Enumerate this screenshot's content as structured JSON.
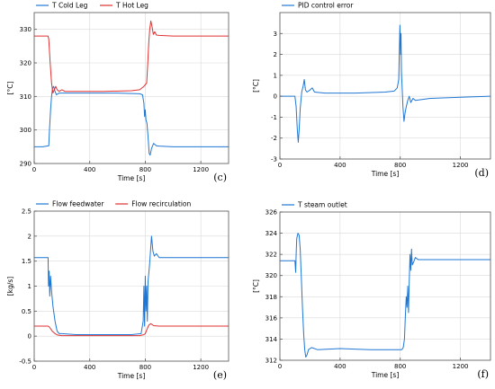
{
  "chart_data": [
    {
      "type": "line",
      "panel_label": "(c)",
      "xlabel": "Time [s]",
      "ylabel": "[°C]",
      "xlim": [
        0,
        1400
      ],
      "ylim": [
        290,
        335
      ],
      "xticks": [
        0,
        400,
        800,
        1200
      ],
      "yticks": [
        290,
        300,
        310,
        320,
        330
      ],
      "grid": true,
      "legend": "top-left",
      "series": [
        {
          "name": "T Cold Leg",
          "color": "#1f77d4",
          "points": [
            [
              0,
              295
            ],
            [
              60,
              295
            ],
            [
              105,
              295.3
            ],
            [
              110,
              300
            ],
            [
              118,
              306
            ],
            [
              125,
              310
            ],
            [
              132,
              312.5
            ],
            [
              140,
              313
            ],
            [
              150,
              311.5
            ],
            [
              160,
              310.5
            ],
            [
              180,
              311
            ],
            [
              220,
              311
            ],
            [
              400,
              311
            ],
            [
              600,
              311
            ],
            [
              760,
              310.8
            ],
            [
              780,
              310.5
            ],
            [
              790,
              308
            ],
            [
              795,
              304
            ],
            [
              800,
              306
            ],
            [
              805,
              303
            ],
            [
              812,
              302
            ],
            [
              820,
              298
            ],
            [
              828,
              293
            ],
            [
              835,
              292.5
            ],
            [
              845,
              294.5
            ],
            [
              860,
              296
            ],
            [
              880,
              295.3
            ],
            [
              900,
              295.2
            ],
            [
              1000,
              295
            ],
            [
              1200,
              295
            ],
            [
              1400,
              295
            ]
          ]
        },
        {
          "name": "T Hot Leg",
          "color": "#e03030",
          "points": [
            [
              0,
              328
            ],
            [
              100,
              328
            ],
            [
              105,
              327
            ],
            [
              115,
              320
            ],
            [
              125,
              314
            ],
            [
              135,
              311
            ],
            [
              145,
              312
            ],
            [
              155,
              313
            ],
            [
              165,
              312
            ],
            [
              180,
              311.5
            ],
            [
              200,
              312
            ],
            [
              220,
              311.5
            ],
            [
              300,
              311.5
            ],
            [
              500,
              311.5
            ],
            [
              700,
              311.7
            ],
            [
              760,
              312
            ],
            [
              790,
              313
            ],
            [
              810,
              314
            ],
            [
              818,
              320
            ],
            [
              825,
              326
            ],
            [
              832,
              330
            ],
            [
              840,
              332.5
            ],
            [
              848,
              331
            ],
            [
              858,
              328.5
            ],
            [
              868,
              329.3
            ],
            [
              880,
              328.3
            ],
            [
              900,
              328.2
            ],
            [
              1000,
              328
            ],
            [
              1200,
              328
            ],
            [
              1400,
              328
            ]
          ]
        }
      ]
    },
    {
      "type": "line",
      "panel_label": "(d)",
      "xlabel": "Time [s]",
      "ylabel": "[°C]",
      "xlim": [
        0,
        1400
      ],
      "ylim": [
        -3,
        4
      ],
      "xticks": [
        0,
        400,
        800,
        1200
      ],
      "yticks": [
        -3,
        -2,
        -1,
        0,
        1,
        2,
        3
      ],
      "grid": true,
      "legend": "top-left",
      "series": [
        {
          "name": "PID control error",
          "color": "#1f77d4",
          "points": [
            [
              0,
              0
            ],
            [
              100,
              0
            ],
            [
              108,
              -0.5
            ],
            [
              115,
              -1.5
            ],
            [
              122,
              -2.2
            ],
            [
              128,
              -1.6
            ],
            [
              135,
              -0.6
            ],
            [
              145,
              0.2
            ],
            [
              155,
              0.5
            ],
            [
              162,
              0.8
            ],
            [
              170,
              0.3
            ],
            [
              180,
              0.2
            ],
            [
              200,
              0.3
            ],
            [
              215,
              0.4
            ],
            [
              230,
              0.2
            ],
            [
              300,
              0.15
            ],
            [
              500,
              0.15
            ],
            [
              700,
              0.2
            ],
            [
              760,
              0.25
            ],
            [
              780,
              0.4
            ],
            [
              790,
              0.8
            ],
            [
              795,
              2.5
            ],
            [
              798,
              3.4
            ],
            [
              802,
              2
            ],
            [
              805,
              3
            ],
            [
              808,
              1.2
            ],
            [
              812,
              0.5
            ],
            [
              818,
              -0.5
            ],
            [
              825,
              -1.2
            ],
            [
              832,
              -0.8
            ],
            [
              840,
              -0.5
            ],
            [
              850,
              -0.2
            ],
            [
              860,
              0
            ],
            [
              870,
              -0.3
            ],
            [
              885,
              -0.1
            ],
            [
              900,
              -0.2
            ],
            [
              1000,
              -0.1
            ],
            [
              1200,
              -0.05
            ],
            [
              1400,
              0
            ]
          ]
        }
      ]
    },
    {
      "type": "line",
      "panel_label": "(e)",
      "xlabel": "Time [s]",
      "ylabel": "[kg/s]",
      "xlim": [
        0,
        1400
      ],
      "ylim": [
        -0.5,
        2.5
      ],
      "xticks": [
        0,
        400,
        800,
        1200
      ],
      "yticks": [
        -0.5,
        0,
        0.5,
        1,
        1.5,
        2,
        2.5
      ],
      "grid": true,
      "legend": "top-left",
      "series": [
        {
          "name": "Flow feedwater",
          "color": "#1f77d4",
          "points": [
            [
              0,
              1.57
            ],
            [
              100,
              1.57
            ],
            [
              103,
              1.0
            ],
            [
              108,
              1.3
            ],
            [
              112,
              0.8
            ],
            [
              118,
              1.2
            ],
            [
              125,
              0.9
            ],
            [
              135,
              0.6
            ],
            [
              150,
              0.3
            ],
            [
              165,
              0.1
            ],
            [
              180,
              0.05
            ],
            [
              200,
              0.05
            ],
            [
              300,
              0.03
            ],
            [
              500,
              0.03
            ],
            [
              700,
              0.03
            ],
            [
              770,
              0.05
            ],
            [
              785,
              0.3
            ],
            [
              790,
              1.0
            ],
            [
              795,
              0.2
            ],
            [
              800,
              1.2
            ],
            [
              805,
              0.5
            ],
            [
              810,
              1.0
            ],
            [
              815,
              0.3
            ],
            [
              820,
              1.1
            ],
            [
              830,
              1.4
            ],
            [
              840,
              1.8
            ],
            [
              845,
              2.0
            ],
            [
              855,
              1.7
            ],
            [
              865,
              1.6
            ],
            [
              880,
              1.65
            ],
            [
              900,
              1.57
            ],
            [
              1000,
              1.57
            ],
            [
              1200,
              1.57
            ],
            [
              1400,
              1.57
            ]
          ]
        },
        {
          "name": "Flow recirculation",
          "color": "#e03030",
          "points": [
            [
              0,
              0.2
            ],
            [
              100,
              0.2
            ],
            [
              110,
              0.18
            ],
            [
              130,
              0.1
            ],
            [
              150,
              0.05
            ],
            [
              170,
              0.02
            ],
            [
              200,
              0.01
            ],
            [
              400,
              0.01
            ],
            [
              600,
              0.01
            ],
            [
              760,
              0.01
            ],
            [
              790,
              0.03
            ],
            [
              800,
              0.05
            ],
            [
              810,
              0.12
            ],
            [
              825,
              0.22
            ],
            [
              840,
              0.25
            ],
            [
              860,
              0.21
            ],
            [
              900,
              0.2
            ],
            [
              1000,
              0.2
            ],
            [
              1200,
              0.2
            ],
            [
              1400,
              0.2
            ]
          ]
        }
      ]
    },
    {
      "type": "line",
      "panel_label": "(f)",
      "xlabel": "Time [s]",
      "ylabel": "[°C]",
      "xlim": [
        0,
        1400
      ],
      "ylim": [
        312,
        326
      ],
      "xticks": [
        0,
        400,
        800,
        1200
      ],
      "yticks": [
        312,
        314,
        316,
        318,
        320,
        322,
        324,
        326
      ],
      "grid": true,
      "legend": "top-left",
      "series": [
        {
          "name": "T steam outlet",
          "color": "#1f77d4",
          "points": [
            [
              0,
              321.4
            ],
            [
              100,
              321.4
            ],
            [
              105,
              320.3
            ],
            [
              108,
              322
            ],
            [
              112,
              323.5
            ],
            [
              120,
              324
            ],
            [
              128,
              323.8
            ],
            [
              135,
              322.5
            ],
            [
              142,
              320
            ],
            [
              150,
              317
            ],
            [
              158,
              314.5
            ],
            [
              165,
              313
            ],
            [
              172,
              312.3
            ],
            [
              180,
              312.5
            ],
            [
              190,
              313
            ],
            [
              210,
              313.2
            ],
            [
              250,
              313
            ],
            [
              400,
              313.1
            ],
            [
              600,
              313
            ],
            [
              780,
              313
            ],
            [
              810,
              313
            ],
            [
              820,
              313.2
            ],
            [
              828,
              314
            ],
            [
              835,
              316.5
            ],
            [
              840,
              318
            ],
            [
              845,
              317
            ],
            [
              850,
              319
            ],
            [
              855,
              316.5
            ],
            [
              860,
              319.5
            ],
            [
              865,
              322
            ],
            [
              870,
              320.5
            ],
            [
              875,
              322.5
            ],
            [
              880,
              321
            ],
            [
              890,
              321.3
            ],
            [
              900,
              321.7
            ],
            [
              920,
              321.5
            ],
            [
              1000,
              321.5
            ],
            [
              1200,
              321.5
            ],
            [
              1400,
              321.5
            ]
          ]
        }
      ]
    }
  ]
}
